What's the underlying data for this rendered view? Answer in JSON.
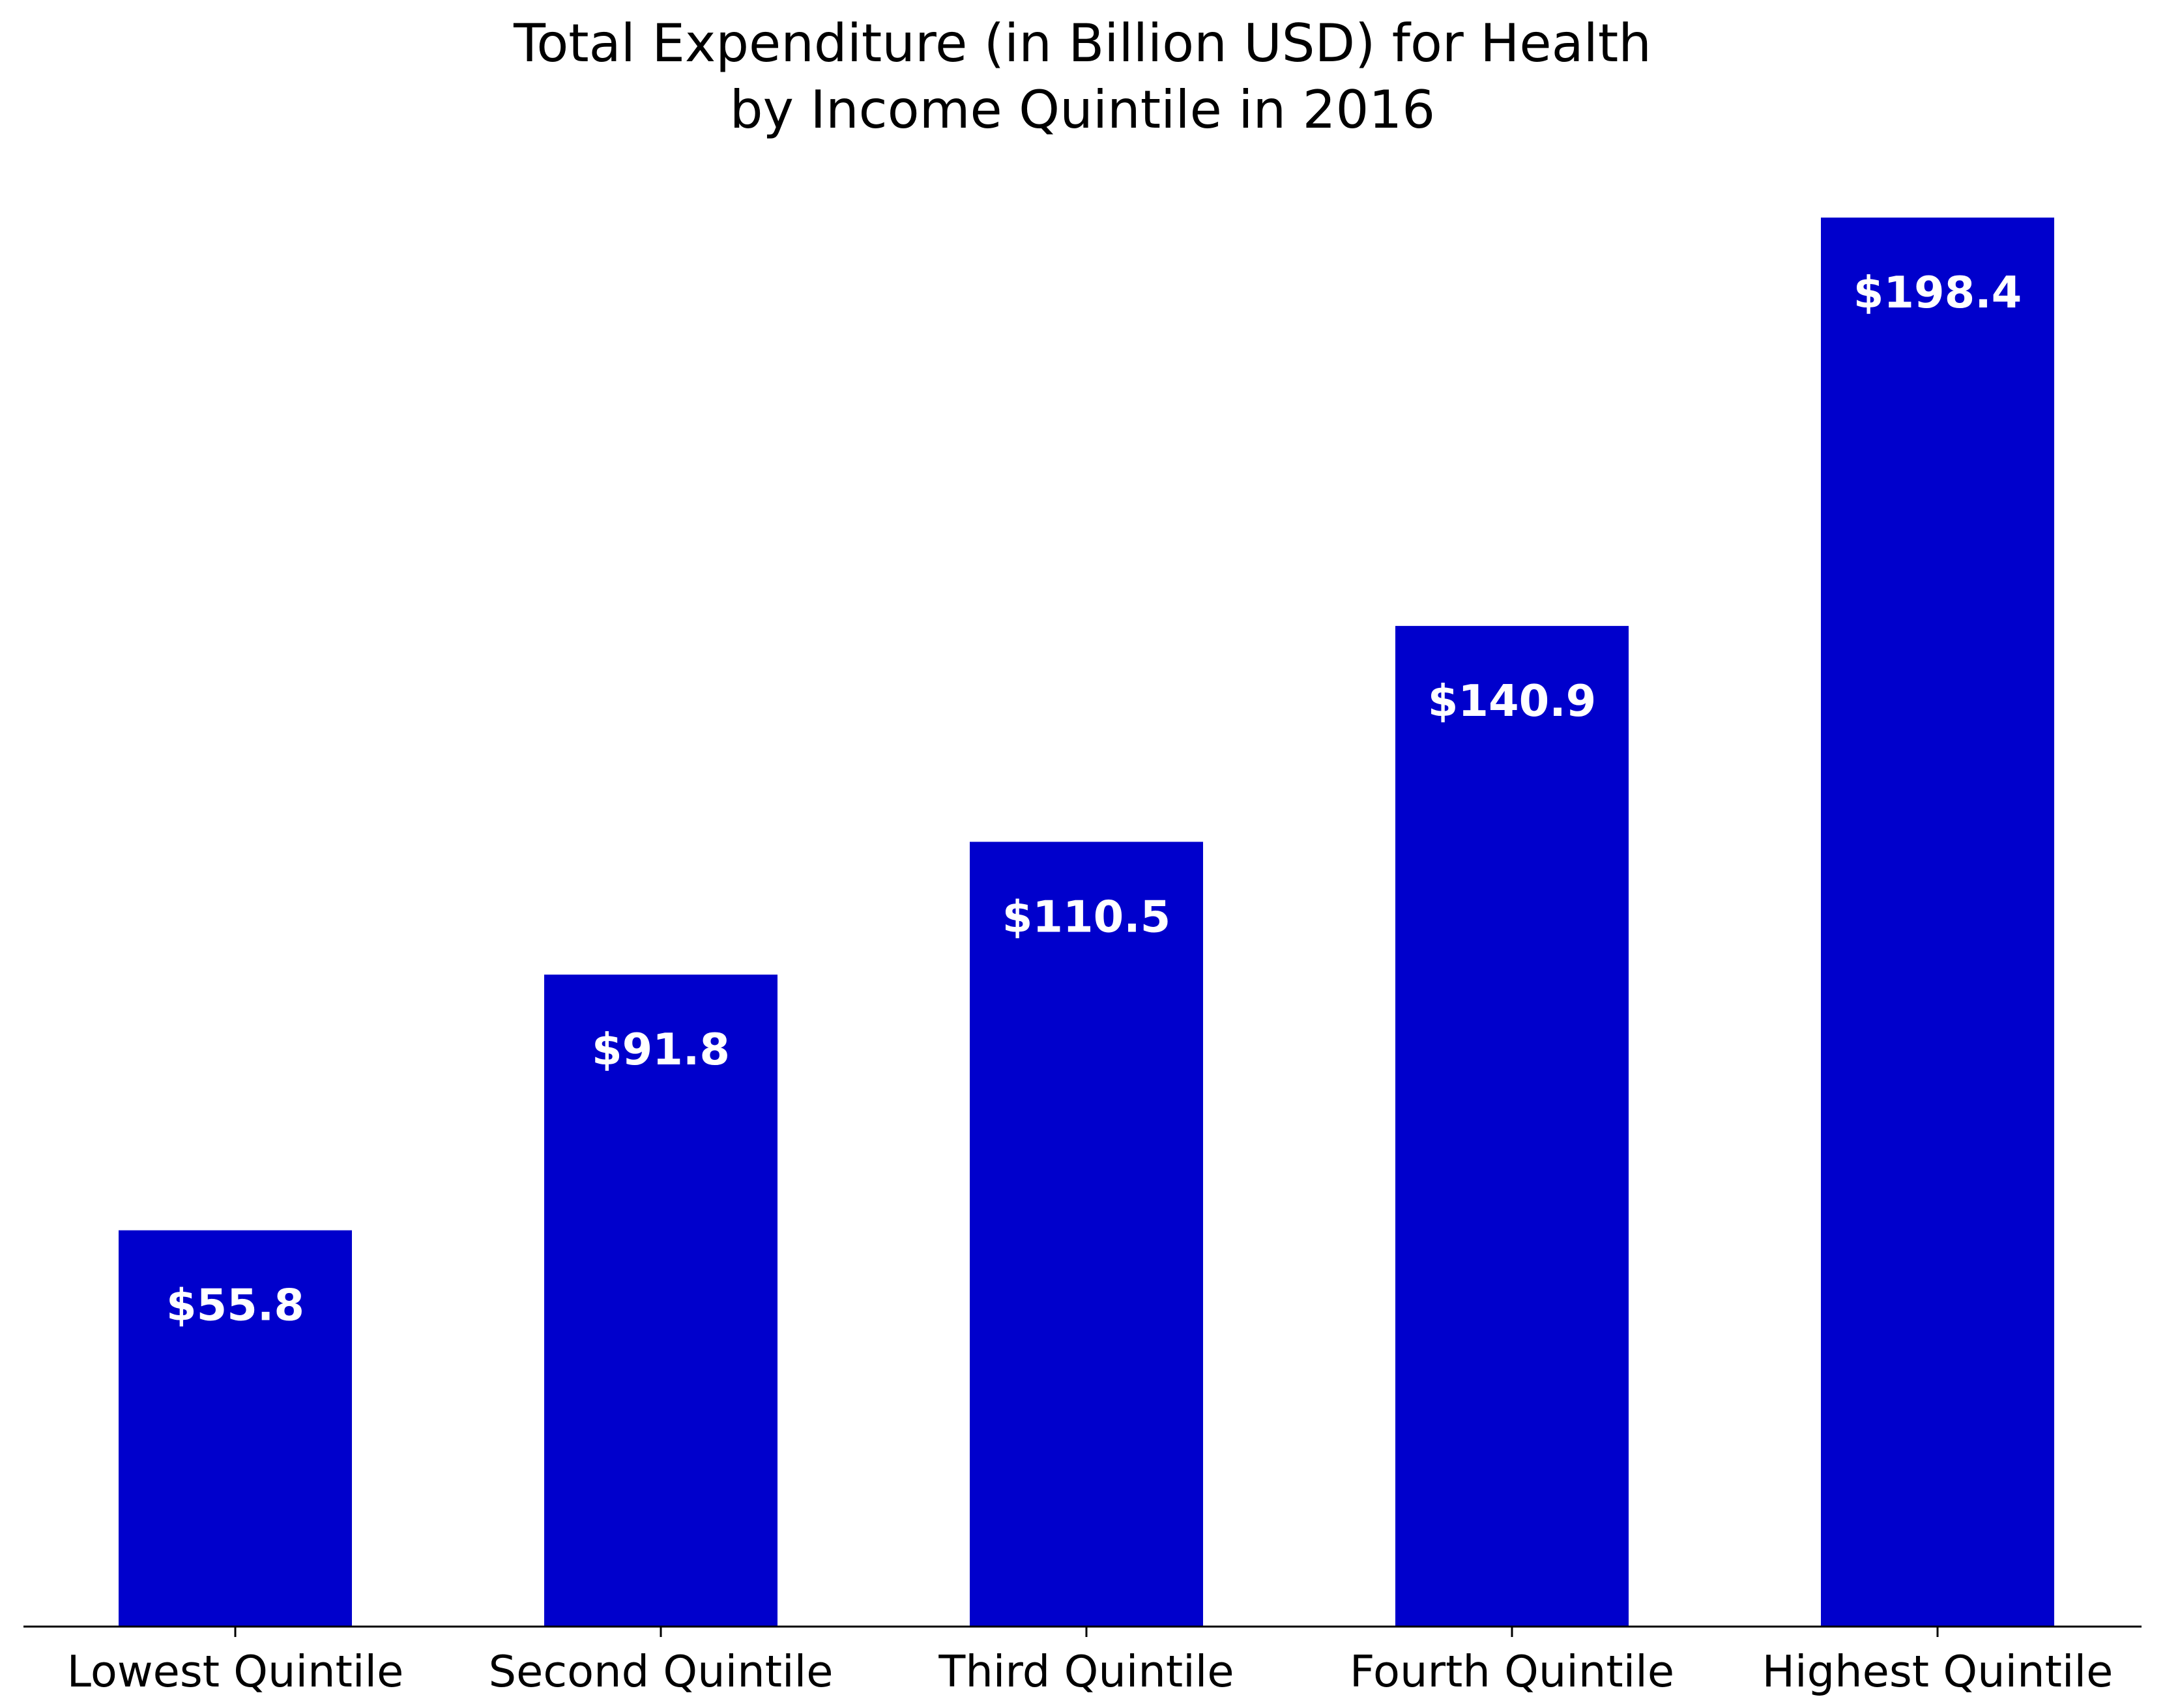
{
  "chart_data": {
    "type": "bar",
    "title_lines": [
      "Total Expenditure (in Billion USD) for Health",
      "by Income Quintile in 2016"
    ],
    "categories": [
      "Lowest Quintile",
      "Second Quintile",
      "Third Quintile",
      "Fourth Quintile",
      "Highest Quintile"
    ],
    "values": [
      55.8,
      91.8,
      110.5,
      140.9,
      198.4
    ],
    "data_labels": [
      "$55.8",
      "$91.8",
      "$110.5",
      "$140.9",
      "$198.4"
    ],
    "xlabel": "",
    "ylabel": "",
    "ylim": [
      0,
      198.4
    ],
    "y_axis_visible": false,
    "grid": false,
    "legend": "none",
    "bar_color": "#0000cc",
    "label_color": "#ffffff"
  }
}
